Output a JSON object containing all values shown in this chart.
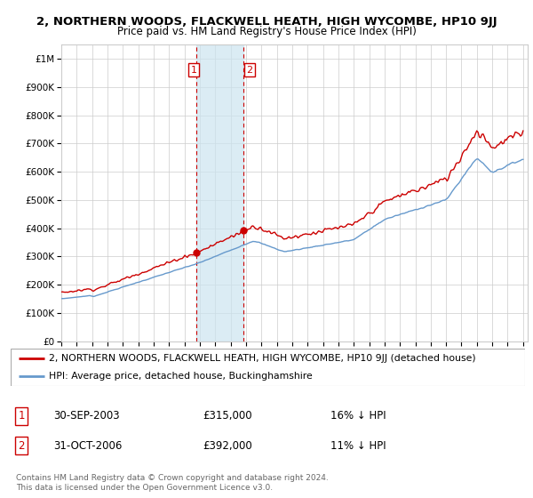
{
  "title": "2, NORTHERN WOODS, FLACKWELL HEATH, HIGH WYCOMBE, HP10 9JJ",
  "subtitle": "Price paid vs. HM Land Registry's House Price Index (HPI)",
  "red_label": "2, NORTHERN WOODS, FLACKWELL HEATH, HIGH WYCOMBE, HP10 9JJ (detached house)",
  "blue_label": "HPI: Average price, detached house, Buckinghamshire",
  "transaction1_date": "30-SEP-2003",
  "transaction1_price": 315000,
  "transaction1_note": "16% ↓ HPI",
  "transaction2_date": "31-OCT-2006",
  "transaction2_price": 392000,
  "transaction2_note": "11% ↓ HPI",
  "footer": "Contains HM Land Registry data © Crown copyright and database right 2024.\nThis data is licensed under the Open Government Licence v3.0.",
  "ylim": [
    0,
    1050000
  ],
  "yticks": [
    0,
    100000,
    200000,
    300000,
    400000,
    500000,
    600000,
    700000,
    800000,
    900000,
    1000000
  ],
  "ylabel_fmt": [
    "£0",
    "£100K",
    "£200K",
    "£300K",
    "£400K",
    "£500K",
    "£600K",
    "£700K",
    "£800K",
    "£900K",
    "£1M"
  ],
  "red_color": "#cc0000",
  "blue_color": "#6699cc",
  "shade_color": "#cce4f0",
  "vline_color": "#cc0000",
  "grid_color": "#cccccc",
  "t1_year": 2003.75,
  "t2_year": 2006.833,
  "background_color": "#ffffff"
}
